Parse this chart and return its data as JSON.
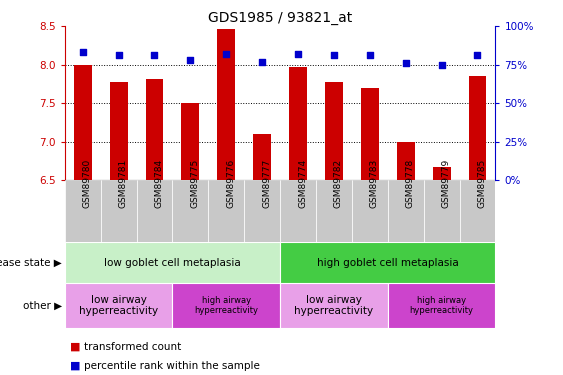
{
  "title": "GDS1985 / 93821_at",
  "samples": [
    "GSM89780",
    "GSM89781",
    "GSM89784",
    "GSM89775",
    "GSM89776",
    "GSM89777",
    "GSM89774",
    "GSM89782",
    "GSM89783",
    "GSM89778",
    "GSM89779",
    "GSM89785"
  ],
  "transformed_count": [
    8.0,
    7.78,
    7.82,
    7.5,
    8.47,
    7.1,
    7.97,
    7.78,
    7.7,
    6.99,
    6.67,
    7.85
  ],
  "percentile_rank": [
    83,
    81,
    81,
    78,
    82,
    77,
    82,
    81,
    81,
    76,
    75,
    81
  ],
  "ylim": [
    6.5,
    8.5
  ],
  "yticks": [
    6.5,
    7.0,
    7.5,
    8.0,
    8.5
  ],
  "right_yticks": [
    0,
    25,
    50,
    75,
    100
  ],
  "right_ylabels": [
    "0%",
    "25%",
    "50%",
    "75%",
    "100%"
  ],
  "bar_color": "#cc0000",
  "dot_color": "#0000cc",
  "tick_bg_color": "#c8c8c8",
  "disease_state_groups": [
    {
      "label": "low goblet cell metaplasia",
      "start": 0,
      "end": 5,
      "color": "#c8f0c8"
    },
    {
      "label": "high goblet cell metaplasia",
      "start": 6,
      "end": 11,
      "color": "#44cc44"
    }
  ],
  "other_groups": [
    {
      "label": "low airway\nhyperreactivity",
      "start": 0,
      "end": 2,
      "color": "#e8a0e8"
    },
    {
      "label": "high airway\nhyperreactivity",
      "start": 3,
      "end": 5,
      "color": "#cc44cc"
    },
    {
      "label": "low airway\nhyperreactivity",
      "start": 6,
      "end": 8,
      "color": "#e8a0e8"
    },
    {
      "label": "high airway\nhyperreactivity",
      "start": 9,
      "end": 11,
      "color": "#cc44cc"
    }
  ],
  "legend_items": [
    {
      "label": "transformed count",
      "color": "#cc0000"
    },
    {
      "label": "percentile rank within the sample",
      "color": "#0000cc"
    }
  ],
  "left_ylabel_color": "#cc0000",
  "right_ylabel_color": "#0000cc"
}
